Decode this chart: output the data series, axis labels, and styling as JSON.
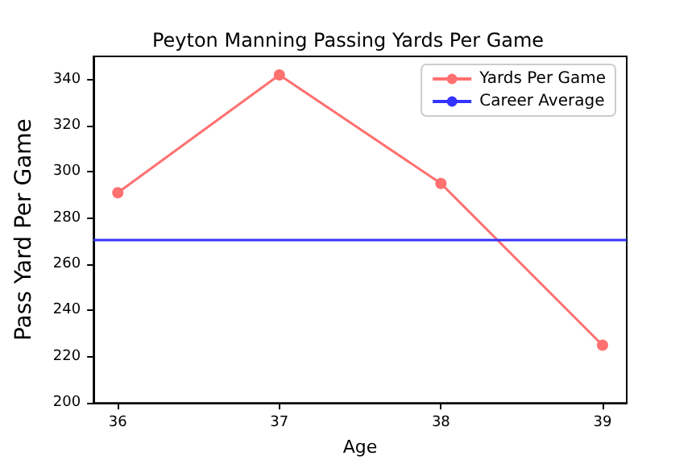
{
  "chart_data": {
    "type": "line",
    "title": "Peyton Manning Passing Yards Per Game",
    "xlabel": "Age",
    "ylabel": "Pass Yard Per Game",
    "x": [
      36,
      37,
      38,
      39
    ],
    "series": [
      {
        "name": "Yards Per Game",
        "color": "#ff7070",
        "values": [
          291,
          342,
          295,
          225
        ]
      }
    ],
    "ref_lines": [
      {
        "axis": "y",
        "value": 270.5,
        "label": "Career Average",
        "color": "#3333ff"
      }
    ],
    "xlim": [
      35.85,
      39.15
    ],
    "xticks": [
      36,
      37,
      38,
      39
    ],
    "ylim": [
      200,
      350
    ],
    "yticks": [
      200,
      220,
      240,
      260,
      280,
      300,
      320,
      340
    ],
    "grid": false,
    "legend": "top right",
    "marker": "circle",
    "line_style": "solid"
  }
}
